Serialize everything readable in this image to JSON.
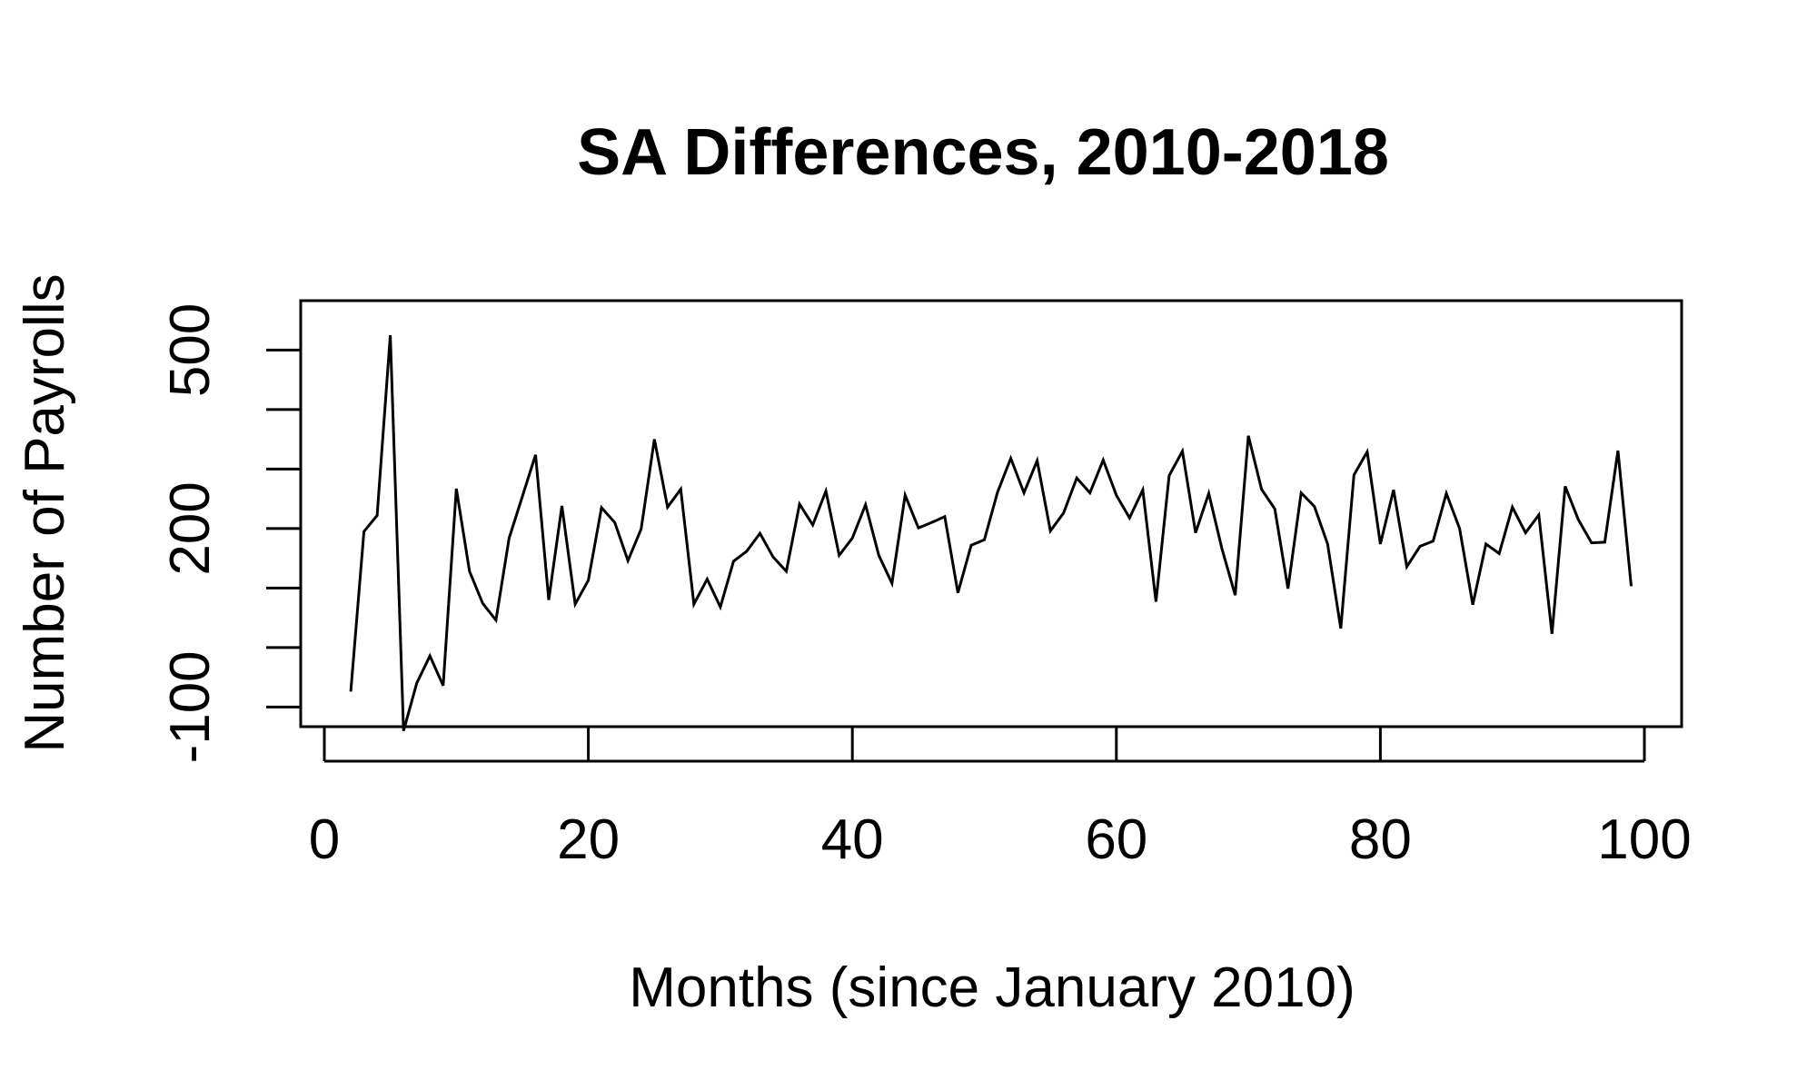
{
  "chart_data": {
    "type": "line",
    "title": "SA Differences, 2010-2018",
    "xlabel": "Months (since January 2010)",
    "ylabel": "Number of Payrolls",
    "xlim": [
      0,
      100
    ],
    "ylim": [
      -133,
      583
    ],
    "x_ticks": [
      0,
      20,
      40,
      60,
      80,
      100
    ],
    "x_tick_labels": [
      "0",
      "20",
      "40",
      "60",
      "80",
      "100"
    ],
    "y_ticks": [
      -100,
      0,
      100,
      200,
      300,
      400,
      500
    ],
    "y_tick_labels": [
      "-100",
      "",
      "",
      "200",
      "",
      "",
      "500"
    ],
    "grid": false,
    "legend": "none",
    "line_color": "#000000",
    "series": [
      {
        "x": [
          2,
          3,
          4,
          5,
          6,
          7,
          8,
          9,
          10,
          11,
          12,
          13,
          14,
          15,
          16,
          17,
          18,
          19,
          20,
          21,
          22,
          23,
          24,
          25,
          26,
          27,
          28,
          29,
          30,
          31,
          32,
          33,
          34,
          35,
          36,
          37,
          38,
          39,
          40,
          41,
          42,
          43,
          44,
          45,
          46,
          47,
          48,
          49,
          50,
          51,
          52,
          53,
          54,
          55,
          56,
          57,
          58,
          59,
          60,
          61,
          62,
          63,
          64,
          65,
          66,
          67,
          68,
          69,
          70,
          71,
          72,
          73,
          74,
          75,
          76,
          77,
          78,
          79,
          80,
          81,
          82,
          83,
          84,
          85,
          86,
          87,
          88,
          89,
          90,
          91,
          92,
          93,
          94,
          95,
          96,
          97,
          98,
          99
        ],
        "values": [
          -74,
          195,
          222,
          525,
          -140,
          -60,
          -14,
          -64,
          267,
          128,
          74,
          46,
          184,
          254,
          324,
          80,
          238,
          73,
          113,
          235,
          210,
          146,
          199,
          350,
          236,
          266,
          73,
          115,
          68,
          145,
          162,
          192,
          152,
          128,
          241,
          206,
          263,
          155,
          184,
          240,
          155,
          108,
          256,
          201,
          210,
          220,
          92,
          172,
          181,
          261,
          318,
          260,
          314,
          196,
          226,
          285,
          260,
          315,
          256,
          218,
          265,
          77,
          289,
          330,
          193,
          259,
          166,
          88,
          356,
          266,
          233,
          99,
          260,
          237,
          174,
          32,
          290,
          329,
          174,
          265,
          136,
          170,
          179,
          259,
          200,
          72,
          174,
          158,
          236,
          193,
          223,
          23,
          271,
          215,
          176,
          177,
          331,
          103
        ]
      }
    ]
  }
}
